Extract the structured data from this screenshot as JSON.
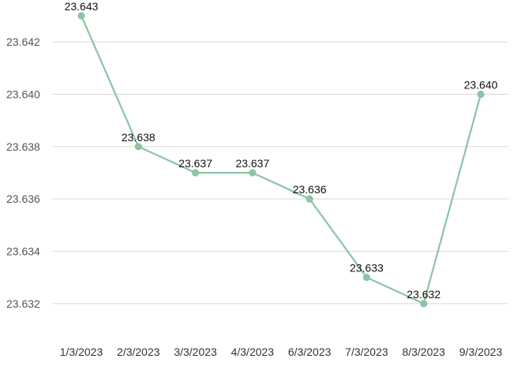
{
  "chart_data": {
    "type": "line",
    "title": "",
    "xlabel": "",
    "ylabel": "",
    "categories": [
      "1/3/2023",
      "2/3/2023",
      "3/3/2023",
      "4/3/2023",
      "6/3/2023",
      "7/3/2023",
      "8/3/2023",
      "9/3/2023"
    ],
    "series": [
      {
        "values": [
          23.643,
          23.638,
          23.637,
          23.637,
          23.636,
          23.633,
          23.632,
          23.64
        ],
        "labels": [
          "23.643",
          "23.638",
          "23.637",
          "23.637",
          "23.636",
          "23.633",
          "23.632",
          "23.640"
        ],
        "color": "#8cc4a4"
      }
    ],
    "y_ticks": [
      23.632,
      23.634,
      23.636,
      23.638,
      23.64,
      23.642
    ],
    "y_tick_labels": [
      "23.632",
      "23.634",
      "23.636",
      "23.638",
      "23.640",
      "23.642"
    ],
    "ylim": [
      23.631,
      23.6433
    ],
    "grid": "horizontal",
    "legend": "none",
    "grid_color": "#d9d9d9"
  }
}
